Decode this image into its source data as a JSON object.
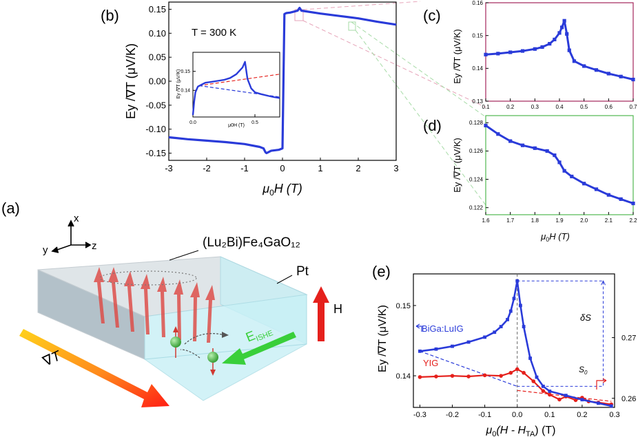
{
  "colors": {
    "blue": "#2a3bd9",
    "red": "#e5201c",
    "frame_c": "#a3245a",
    "frame_d": "#4fb84f",
    "film": "#cfd8de",
    "pt": "#bfeef4",
    "arrow_red": "#de4a45",
    "eishe": "#39cf3a",
    "electron": "#3aa83a",
    "grad_start": "#ffd21c",
    "grad_end": "#ff1e14"
  },
  "panel_labels": {
    "a": "(a)",
    "b": "(b)",
    "c": "(c)",
    "d": "(d)",
    "e": "(e)"
  },
  "schematic": {
    "axis_x": "x",
    "axis_y": "y",
    "axis_z": "z",
    "film_formula": "(Lu₂Bi)Fe₄GaO₁₂",
    "pt_label": "Pt",
    "eishe_label": "E",
    "eishe_sub": "ISHE",
    "field_label": "H",
    "grad_label": "∇T"
  },
  "chart_data": [
    {
      "id": "b",
      "type": "line",
      "annotation": "T = 300 K",
      "xlabel_sym": "μ",
      "xlabel_sub": "0",
      "xlabel_rest": "H (T)",
      "ylabel": "Ey /∇T (μV/K)",
      "xlim": [
        -3,
        3
      ],
      "ylim": [
        -0.165,
        0.165
      ],
      "x_ticks": [
        -3,
        -2,
        -1,
        0,
        1,
        2,
        3
      ],
      "x_tick_labels": [
        "-3",
        "-2",
        "-1",
        "0",
        "1",
        "2",
        "3"
      ],
      "y_ticks": [
        0.15,
        0.1,
        0.05,
        0.0,
        -0.05,
        -0.1,
        -0.15
      ],
      "y_tick_labels": [
        "0.15",
        "0.10",
        "0.05",
        "0.00",
        "-0.05",
        "-0.10",
        "-0.15"
      ],
      "series": [
        {
          "x": [
            -3.0,
            -2.5,
            -2.0,
            -1.5,
            -1.0,
            -0.6,
            -0.5,
            -0.45,
            -0.42,
            -0.3,
            -0.1,
            0.0,
            0.05,
            0.1,
            0.2,
            0.3,
            0.4,
            0.45,
            0.5,
            1.0,
            1.5,
            2.0,
            2.5,
            3.0
          ],
          "values": [
            -0.117,
            -0.121,
            -0.124,
            -0.127,
            -0.131,
            -0.137,
            -0.14,
            -0.148,
            -0.15,
            -0.145,
            -0.143,
            -0.14,
            0.14,
            0.142,
            0.143,
            0.145,
            0.147,
            0.153,
            0.147,
            0.141,
            0.136,
            0.131,
            0.124,
            0.118
          ]
        }
      ],
      "inset": {
        "xlabel": "μ0H (T)",
        "ylabel": "Ey /∇T (μV/K)",
        "xlim": [
          0,
          0.7
        ],
        "ylim": [
          0.126,
          0.16
        ],
        "x_ticks": [
          0.0,
          0.5
        ],
        "x_tick_labels": [
          "0.0",
          "0.5"
        ],
        "y_ticks": [
          0.15,
          0.14
        ],
        "y_tick_labels": [
          "0.15",
          "0.14"
        ],
        "series": [
          {
            "x": [
              0.0,
              0.01,
              0.02,
              0.04,
              0.07,
              0.1,
              0.15,
              0.2,
              0.25,
              0.3,
              0.35,
              0.4,
              0.42,
              0.44,
              0.47,
              0.5,
              0.55,
              0.6,
              0.65,
              0.7
            ],
            "values": [
              0.127,
              0.134,
              0.139,
              0.142,
              0.143,
              0.144,
              0.1445,
              0.145,
              0.1455,
              0.1465,
              0.1485,
              0.152,
              0.155,
              0.146,
              0.141,
              0.139,
              0.138,
              0.1372,
              0.1365,
              0.136
            ]
          },
          {
            "style": "dashed-red",
            "x": [
              0.05,
              0.7
            ],
            "values": [
              0.1425,
              0.1485
            ]
          },
          {
            "style": "dashed-blue",
            "x": [
              0.05,
              0.7
            ],
            "values": [
              0.1425,
              0.1365
            ]
          }
        ]
      }
    },
    {
      "id": "c",
      "type": "line",
      "ylabel": "Ey /∇T (μV/K)",
      "xlim": [
        0.1,
        0.7
      ],
      "ylim": [
        0.13,
        0.16
      ],
      "x_ticks": [
        0.1,
        0.2,
        0.3,
        0.4,
        0.5,
        0.6,
        0.7
      ],
      "x_tick_labels": [
        "0.1",
        "0.2",
        "0.3",
        "0.4",
        "0.5",
        "0.6",
        "0.7"
      ],
      "y_ticks": [
        0.16,
        0.15,
        0.14,
        0.13
      ],
      "y_tick_labels": [
        "0.16",
        "0.15",
        "0.14",
        "0.13"
      ],
      "series": [
        {
          "x": [
            0.1,
            0.15,
            0.2,
            0.25,
            0.3,
            0.33,
            0.36,
            0.38,
            0.4,
            0.41,
            0.42,
            0.43,
            0.44,
            0.46,
            0.5,
            0.55,
            0.6,
            0.65,
            0.7
          ],
          "values": [
            0.1442,
            0.1445,
            0.1449,
            0.1453,
            0.1459,
            0.1465,
            0.1475,
            0.1488,
            0.1508,
            0.1525,
            0.1545,
            0.1505,
            0.1455,
            0.1422,
            0.1407,
            0.1395,
            0.1384,
            0.1375,
            0.1366
          ]
        }
      ]
    },
    {
      "id": "d",
      "type": "line",
      "xlabel_sym": "μ",
      "xlabel_sub": "0",
      "xlabel_rest": "H (T)",
      "ylabel": "Ey /∇T (μV/K)",
      "xlim": [
        1.6,
        2.2
      ],
      "ylim": [
        0.1215,
        0.1285
      ],
      "x_ticks": [
        1.6,
        1.7,
        1.8,
        1.9,
        2.0,
        2.1,
        2.2
      ],
      "x_tick_labels": [
        "1.6",
        "1.7",
        "1.8",
        "1.9",
        "2.0",
        "2.1",
        "2.2"
      ],
      "y_ticks": [
        0.128,
        0.126,
        0.124,
        0.122
      ],
      "y_tick_labels": [
        "0.128",
        "0.126",
        "0.124",
        "0.122"
      ],
      "series": [
        {
          "x": [
            1.6,
            1.65,
            1.7,
            1.75,
            1.8,
            1.85,
            1.88,
            1.9,
            1.92,
            1.95,
            2.0,
            2.05,
            2.1,
            2.15,
            2.2
          ],
          "values": [
            0.1278,
            0.1272,
            0.1267,
            0.1264,
            0.1262,
            0.126,
            0.1257,
            0.1252,
            0.1246,
            0.1242,
            0.1237,
            0.1233,
            0.1229,
            0.1226,
            0.1223
          ]
        }
      ]
    },
    {
      "id": "e",
      "type": "line",
      "xlabel": "μ0(H - HTA) (T)",
      "xlabel_pre": "μ",
      "xlabel_sub1": "0",
      "xlabel_mid": "(H - H",
      "xlabel_sub2": "TA",
      "xlabel_post": ") (T)",
      "ylabel": "Ey /∇T (μV/K)",
      "xlim": [
        -0.32,
        0.3
      ],
      "ylim": [
        0.1355,
        0.1545
      ],
      "ylim_right": [
        0.2585,
        0.2805
      ],
      "x_ticks": [
        -0.3,
        -0.2,
        -0.1,
        0.0,
        0.1,
        0.2,
        0.3
      ],
      "x_tick_labels": [
        "-0.3",
        "-0.2",
        "-0.1",
        "0.0",
        "0.1",
        "0.2",
        "0.3"
      ],
      "y_ticks": [
        0.15,
        0.14
      ],
      "y_tick_labels": [
        "0.15",
        "0.14"
      ],
      "y_ticks_right": [
        0.27,
        0.26
      ],
      "y_tick_labels_right": [
        "0.27",
        "0.26"
      ],
      "annotations": {
        "delta_s": "δS",
        "s0_main": "S",
        "s0_sub": "0"
      },
      "series": [
        {
          "name": "BiGa:LuIG",
          "axis": "left",
          "x": [
            -0.3,
            -0.25,
            -0.2,
            -0.15,
            -0.1,
            -0.07,
            -0.05,
            -0.03,
            -0.02,
            -0.01,
            0.0,
            0.01,
            0.02,
            0.04,
            0.06,
            0.08,
            0.1,
            0.15,
            0.2,
            0.25,
            0.29
          ],
          "values": [
            0.1435,
            0.1438,
            0.1442,
            0.1448,
            0.1455,
            0.1462,
            0.147,
            0.148,
            0.1492,
            0.151,
            0.1535,
            0.15,
            0.147,
            0.1425,
            0.1398,
            0.1385,
            0.1378,
            0.1372,
            0.1366,
            0.1361,
            0.1357
          ]
        },
        {
          "name": "YIG",
          "axis": "right",
          "x": [
            -0.3,
            -0.25,
            -0.2,
            -0.15,
            -0.1,
            -0.05,
            -0.02,
            0.0,
            0.02,
            0.05,
            0.08,
            0.1,
            0.13,
            0.15,
            0.18,
            0.2,
            0.22,
            0.25,
            0.29
          ],
          "values": [
            0.2635,
            0.2636,
            0.2637,
            0.2636,
            0.2638,
            0.2637,
            0.2642,
            0.2648,
            0.2642,
            0.2628,
            0.2612,
            0.2606,
            0.2598,
            0.2603,
            0.2597,
            0.2601,
            0.2595,
            0.2593,
            0.259
          ]
        },
        {
          "style": "dashed-blue",
          "axis": "left",
          "x": [
            -0.3,
            0.0
          ],
          "values": [
            0.1435,
            0.1385
          ]
        },
        {
          "style": "dashed-red",
          "axis": "right",
          "x": [
            0.0,
            0.29
          ],
          "values": [
            0.2613,
            0.2595
          ]
        }
      ]
    }
  ]
}
